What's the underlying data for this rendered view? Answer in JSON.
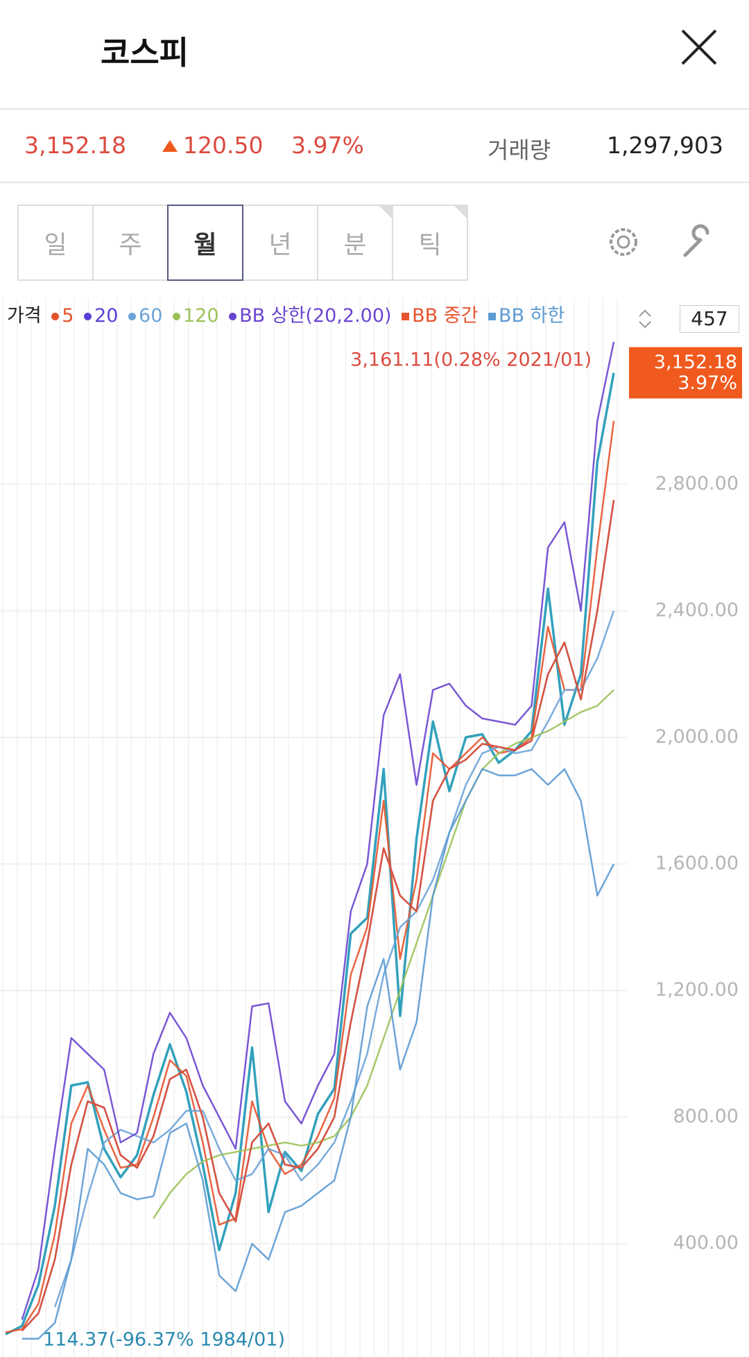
{
  "header": {
    "title": "코스피"
  },
  "price_bar": {
    "price": "3,152.18",
    "change": "120.50",
    "change_percent": "3.97%",
    "volume_label": "거래량",
    "volume": "1,297,903"
  },
  "tabs": [
    "일",
    "주",
    "월",
    "년",
    "분",
    "틱"
  ],
  "visible_count": 457,
  "chart_data": {
    "type": "line",
    "categories": [
      null,
      null,
      null,
      null,
      null,
      null,
      null,
      null,
      null,
      null,
      null,
      null,
      null,
      null,
      null,
      null,
      null,
      null,
      null,
      null,
      null,
      null,
      null,
      null,
      null,
      null,
      null,
      null,
      null,
      null,
      null,
      null,
      null,
      null,
      null,
      null,
      null,
      null
    ],
    "series": [
      {
        "name": "가격",
        "color": "#1c97b5",
        "values": [
          114,
          140,
          270,
          520,
          900,
          910,
          700,
          610,
          680,
          870,
          1030,
          880,
          650,
          380,
          560,
          1020,
          500,
          690,
          630,
          810,
          890,
          1380,
          1430,
          1900,
          1120,
          1680,
          2050,
          1830,
          2000,
          2010,
          1920,
          1960,
          2020,
          2470,
          2040,
          2200,
          2870,
          3152
        ]
      },
      {
        "name": "5",
        "color": "#e5532c",
        "marker": "circle",
        "values": [
          120,
          130,
          210,
          430,
          780,
          900,
          760,
          640,
          650,
          800,
          980,
          930,
          720,
          460,
          480,
          850,
          700,
          620,
          650,
          740,
          860,
          1250,
          1400,
          1800,
          1300,
          1550,
          1950,
          1900,
          1950,
          2000,
          1950,
          1960,
          2000,
          2350,
          2150,
          2150,
          2600,
          3000
        ]
      },
      {
        "name": "20",
        "color": "#5b3fd4",
        "marker": "circle",
        "values": [
          null,
          125,
          180,
          350,
          650,
          850,
          830,
          680,
          640,
          740,
          920,
          950,
          800,
          560,
          470,
          720,
          780,
          650,
          640,
          700,
          800,
          1100,
          1350,
          1650,
          1500,
          1450,
          1800,
          1900,
          1930,
          1980,
          1970,
          1960,
          1990,
          2200,
          2300,
          2120,
          2400,
          2750
        ]
      },
      {
        "name": "60",
        "color": "#6aa3d8",
        "marker": "circle",
        "values": [
          null,
          null,
          null,
          200,
          350,
          550,
          720,
          760,
          740,
          720,
          760,
          820,
          820,
          700,
          600,
          620,
          700,
          680,
          600,
          650,
          720,
          850,
          1000,
          1250,
          1400,
          1450,
          1550,
          1700,
          1850,
          1950,
          1970,
          1950,
          1960,
          2050,
          2150,
          2150,
          2250,
          2400
        ]
      },
      {
        "name": "120",
        "color": "#9cc25a",
        "marker": "circle",
        "values": [
          null,
          null,
          null,
          null,
          null,
          null,
          null,
          null,
          null,
          480,
          560,
          620,
          660,
          680,
          690,
          700,
          710,
          720,
          710,
          720,
          740,
          800,
          900,
          1050,
          1200,
          1350,
          1500,
          1650,
          1800,
          1900,
          1950,
          1980,
          2000,
          2020,
          2050,
          2080,
          2100,
          2150
        ]
      },
      {
        "name": "BB 상한(20,2.00)",
        "color": "#6a45d0",
        "marker": "circle",
        "values": [
          null,
          160,
          320,
          700,
          1050,
          1000,
          950,
          720,
          750,
          1000,
          1130,
          1050,
          900,
          800,
          700,
          1150,
          1160,
          850,
          780,
          900,
          1000,
          1450,
          1600,
          2070,
          2200,
          1850,
          2150,
          2170,
          2100,
          2060,
          2050,
          2040,
          2100,
          2600,
          2680,
          2400,
          3000,
          3250
        ]
      },
      {
        "name": "BB 중간",
        "color": "#e5532c",
        "marker": "square",
        "values": [
          null,
          125,
          180,
          350,
          650,
          850,
          830,
          680,
          640,
          740,
          920,
          950,
          800,
          560,
          470,
          720,
          780,
          650,
          640,
          700,
          800,
          1100,
          1350,
          1650,
          1500,
          1450,
          1800,
          1900,
          1930,
          1980,
          1970,
          1960,
          1990,
          2200,
          2300,
          2120,
          2400,
          2750
        ]
      },
      {
        "name": "BB 하한",
        "color": "#5c9ad3",
        "marker": "square",
        "values": [
          null,
          100,
          100,
          150,
          350,
          700,
          650,
          560,
          540,
          550,
          750,
          780,
          600,
          300,
          250,
          400,
          350,
          500,
          520,
          560,
          600,
          800,
          1150,
          1300,
          950,
          1100,
          1500,
          1700,
          1800,
          1900,
          1880,
          1880,
          1900,
          1850,
          1900,
          1800,
          1500,
          1600
        ]
      }
    ],
    "ylim": [
      53,
      3388
    ],
    "yticks": [
      {
        "value": 400,
        "label": "400.00"
      },
      {
        "value": 800,
        "label": "800.00"
      },
      {
        "value": 1200,
        "label": "1,200.00"
      },
      {
        "value": 1600,
        "label": "1,600.00"
      },
      {
        "value": 2000,
        "label": "2,000.00"
      },
      {
        "value": 2400,
        "label": "2,400.00"
      },
      {
        "value": 2800,
        "label": "2,800.00"
      }
    ],
    "grid": true,
    "last_value": 3152.18,
    "annotations": {
      "high": "3,161.11(0.28% 2021/01)",
      "low": "114.37(-96.37% 1984/01)"
    }
  }
}
